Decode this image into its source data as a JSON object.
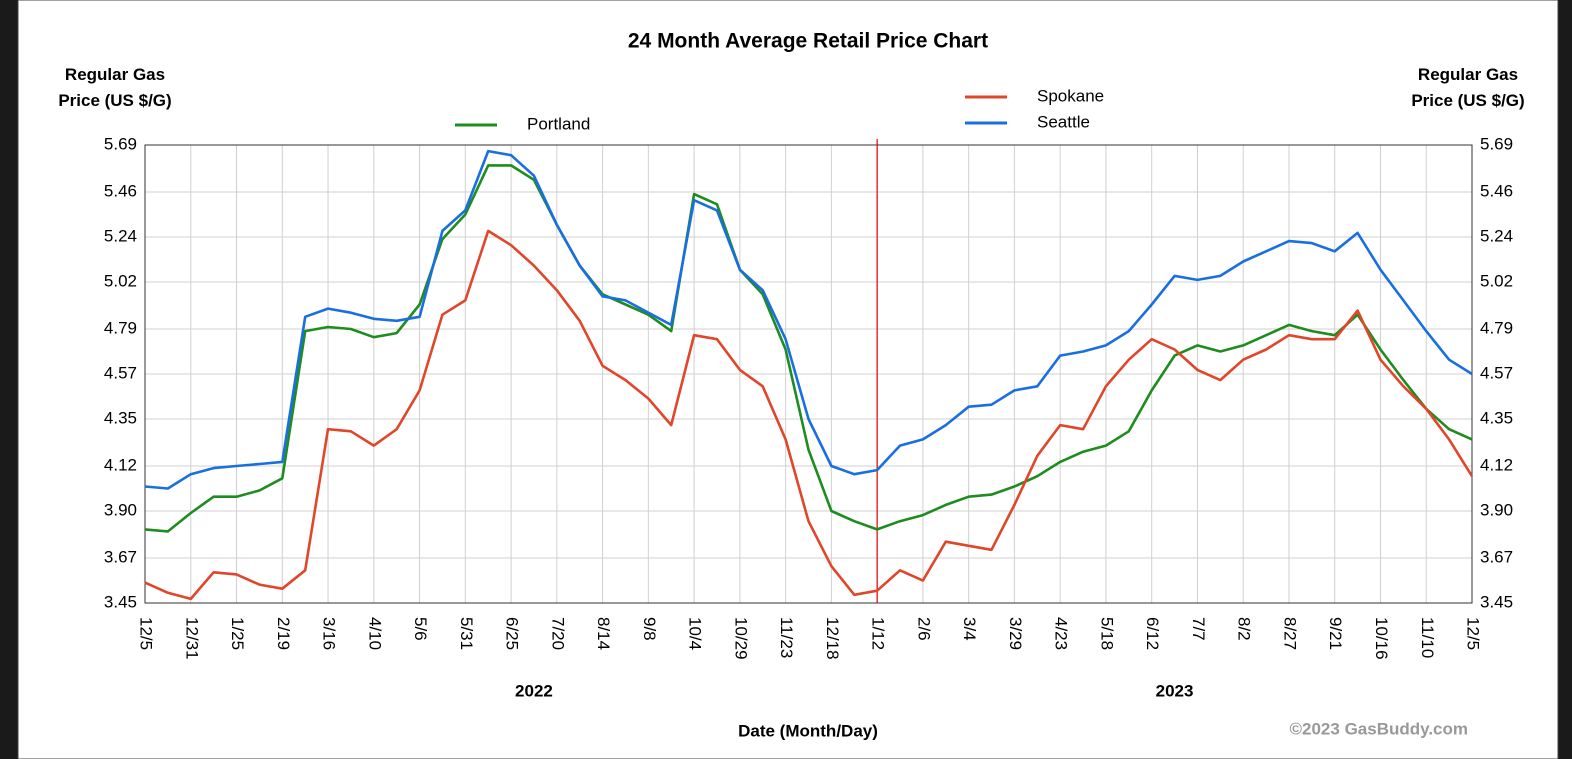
{
  "chart_data": {
    "type": "line",
    "title": "24 Month Average Retail Price Chart",
    "y_label": "Regular Gas Price (US $/G)",
    "x_label": "Date (Month/Day)",
    "year_labels": [
      "2022",
      "2023"
    ],
    "credit": "©2023 GasBuddy.com",
    "categories": [
      "12/5",
      null,
      "12/31",
      null,
      "1/25",
      null,
      "2/19",
      null,
      "3/16",
      null,
      "4/10",
      null,
      "5/6",
      null,
      "5/31",
      null,
      "6/25",
      null,
      "7/20",
      null,
      "8/14",
      null,
      "9/8",
      null,
      "10/4",
      null,
      "10/29",
      null,
      "11/23",
      null,
      "12/18",
      null,
      "1/12",
      null,
      "2/6",
      null,
      "3/4",
      null,
      "3/29",
      null,
      "4/23",
      null,
      "5/18",
      null,
      "6/12",
      null,
      "7/7",
      null,
      "8/2",
      null,
      "8/27",
      null,
      "9/21",
      null,
      "10/16",
      null,
      "11/10",
      null,
      "12/5"
    ],
    "series": [
      {
        "name": "Portland",
        "color": "#1e8c1e",
        "values": [
          3.81,
          3.8,
          3.89,
          3.97,
          3.97,
          4.0,
          4.06,
          4.78,
          4.8,
          4.79,
          4.75,
          4.77,
          4.91,
          5.23,
          5.35,
          5.59,
          5.59,
          5.52,
          5.3,
          5.1,
          4.96,
          4.91,
          4.86,
          4.78,
          5.45,
          5.4,
          5.08,
          4.96,
          4.69,
          4.2,
          3.9,
          3.85,
          3.81,
          3.85,
          3.88,
          3.93,
          3.97,
          3.98,
          4.02,
          4.07,
          4.14,
          4.19,
          4.22,
          4.29,
          4.49,
          4.66,
          4.71,
          4.68,
          4.71,
          4.76,
          4.81,
          4.78,
          4.76,
          4.86,
          4.69,
          4.54,
          4.4,
          4.3,
          4.25
        ]
      },
      {
        "name": "Spokane",
        "color": "#e0462a",
        "values": [
          3.55,
          3.5,
          3.47,
          3.6,
          3.59,
          3.54,
          3.52,
          3.61,
          4.3,
          4.29,
          4.22,
          4.3,
          4.49,
          4.86,
          4.93,
          5.27,
          5.2,
          5.1,
          4.98,
          4.83,
          4.61,
          4.54,
          4.45,
          4.32,
          4.76,
          4.74,
          4.59,
          4.51,
          4.25,
          3.85,
          3.63,
          3.49,
          3.51,
          3.61,
          3.56,
          3.75,
          3.73,
          3.71,
          3.93,
          4.17,
          4.32,
          4.3,
          4.51,
          4.64,
          4.74,
          4.69,
          4.59,
          4.54,
          4.64,
          4.69,
          4.76,
          4.74,
          4.74,
          4.88,
          4.64,
          4.51,
          4.4,
          4.25,
          4.07
        ]
      },
      {
        "name": "Seattle",
        "color": "#1a6fe0",
        "values": [
          4.02,
          4.01,
          4.08,
          4.11,
          4.12,
          4.13,
          4.14,
          4.85,
          4.89,
          4.87,
          4.84,
          4.83,
          4.85,
          5.27,
          5.37,
          5.66,
          5.64,
          5.54,
          5.3,
          5.1,
          4.95,
          4.93,
          4.87,
          4.81,
          5.42,
          5.37,
          5.08,
          4.98,
          4.74,
          4.35,
          4.12,
          4.08,
          4.1,
          4.22,
          4.25,
          4.32,
          4.41,
          4.42,
          4.49,
          4.51,
          4.66,
          4.68,
          4.71,
          4.78,
          4.91,
          5.05,
          5.03,
          5.05,
          5.12,
          5.17,
          5.22,
          5.21,
          5.17,
          5.26,
          5.08,
          4.93,
          4.78,
          4.64,
          4.57
        ]
      }
    ],
    "ylim": [
      3.45,
      5.69
    ],
    "yticks": [
      3.45,
      3.67,
      {
        "value": 3.9,
        "label": "3.90"
      },
      4.12,
      4.35,
      4.57,
      4.79,
      5.02,
      5.24,
      5.46,
      5.69
    ],
    "grid": true
  }
}
